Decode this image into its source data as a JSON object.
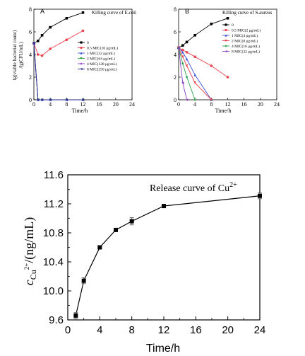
{
  "chart_data": [
    {
      "type": "line",
      "panel_label": "A",
      "title": "Killing curve of E.coli",
      "xlabel": "Time/h",
      "ylabel_line1": "lg(viable bacterial count)",
      "ylabel_line2": "/lg(CFU/mL)",
      "xlim": [
        0,
        24
      ],
      "ylim": [
        0,
        8
      ],
      "xticks": [
        "0",
        "4",
        "8",
        "12",
        "16",
        "20",
        "24"
      ],
      "yticks": [
        "0",
        "2",
        "4",
        "6",
        "8"
      ],
      "legend_position": "center-right",
      "series": [
        {
          "name": "0",
          "color": "#000000",
          "x": [
            0,
            1,
            2,
            4,
            8,
            12
          ],
          "y": [
            5.0,
            5.2,
            5.7,
            6.4,
            7.2,
            7.7
          ]
        },
        {
          "name": "0.5 MIC(16 μg/mL)",
          "color": "#e8434f",
          "x": [
            0,
            1,
            2,
            4,
            8,
            12
          ],
          "y": [
            5.0,
            4.0,
            3.9,
            4.5,
            5.3,
            6.1
          ]
        },
        {
          "name": "1 MIC(32 μg/mL)",
          "color": "#3a4fd6",
          "x": [
            0,
            1,
            2,
            4,
            8,
            12
          ],
          "y": [
            5.0,
            0,
            0,
            0,
            0,
            0
          ]
        },
        {
          "name": "2 MIC(64 μg/mL)",
          "color": "#2aa04a",
          "x": [
            0,
            1,
            2,
            4,
            8,
            12
          ],
          "y": [
            5.0,
            0,
            0,
            0,
            0,
            0
          ]
        },
        {
          "name": "4 MIC(128 μg/mL)",
          "color": "#8a3fbf",
          "x": [
            0,
            1,
            2,
            4,
            8,
            12
          ],
          "y": [
            5.0,
            0,
            0,
            0,
            0,
            0
          ]
        },
        {
          "name": "8 MIC(256 μg/mL)",
          "color": "#1f2a8a",
          "x": [
            0,
            1,
            2,
            4,
            8,
            12
          ],
          "y": [
            5.0,
            0,
            0,
            0,
            0,
            0
          ]
        }
      ]
    },
    {
      "type": "line",
      "panel_label": "B",
      "title": "Killing curve of S.aureus",
      "xlabel": "Time/h",
      "xlim": [
        0,
        24
      ],
      "ylim": [
        0,
        8
      ],
      "xticks": [
        "0",
        "4",
        "8",
        "12",
        "16",
        "20",
        "24"
      ],
      "yticks": [
        "0",
        "2",
        "4",
        "6",
        "8"
      ],
      "legend_position": "right",
      "series": [
        {
          "name": "0",
          "color": "#000000",
          "x": [
            0,
            1,
            2,
            4,
            8,
            12
          ],
          "y": [
            4.6,
            4.8,
            5.1,
            5.7,
            6.7,
            7.2
          ]
        },
        {
          "name": "0.5 MIC(2 μg/mL)",
          "color": "#e8434f",
          "x": [
            0,
            1,
            2,
            4,
            8,
            12
          ],
          "y": [
            4.6,
            4.4,
            4.2,
            3.8,
            3.0,
            2.0
          ]
        },
        {
          "name": "1 MIC(4 μg/mL)",
          "color": "#3a4fd6",
          "x": [
            0,
            1,
            2,
            4,
            8
          ],
          "y": [
            4.6,
            4.2,
            3.6,
            2.2,
            0
          ]
        },
        {
          "name": "2 MIC(8 μg/mL)",
          "color": "#e8434f",
          "x": [
            0,
            1,
            2,
            4,
            8
          ],
          "y": [
            4.6,
            3.8,
            3.0,
            1.5,
            0
          ]
        },
        {
          "name": "4 MIC(16 μg/mL)",
          "color": "#2aa04a",
          "x": [
            0,
            1,
            2,
            4
          ],
          "y": [
            4.6,
            3.2,
            2.0,
            0
          ]
        },
        {
          "name": "8 MIC(32 μg/mL)",
          "color": "#8a3fbf",
          "x": [
            0,
            1,
            2
          ],
          "y": [
            4.6,
            1.5,
            0
          ]
        }
      ]
    },
    {
      "type": "line",
      "title_main": "Release curve of Cu",
      "title_sup": "2+",
      "xlabel": "Time/h",
      "ylabel_c": "c",
      "ylabel_sub": "Cu",
      "ylabel_subsup": "2+",
      "ylabel_unit": "/(ng/mL)",
      "xlim": [
        0,
        24
      ],
      "ylim": [
        9.6,
        11.6
      ],
      "xticks": [
        "0",
        "4",
        "8",
        "12",
        "16",
        "20",
        "24"
      ],
      "yticks": [
        "9.6",
        "10.0",
        "10.4",
        "10.8",
        "11.2",
        "11.6"
      ],
      "series": [
        {
          "color": "#000000",
          "x": [
            1,
            2,
            4,
            6,
            8,
            12,
            24
          ],
          "y": [
            9.66,
            10.14,
            10.6,
            10.84,
            10.96,
            11.17,
            11.31
          ],
          "err": [
            0.04,
            0.04,
            0.02,
            0.02,
            0.05,
            0.02,
            0.04
          ]
        }
      ]
    }
  ]
}
